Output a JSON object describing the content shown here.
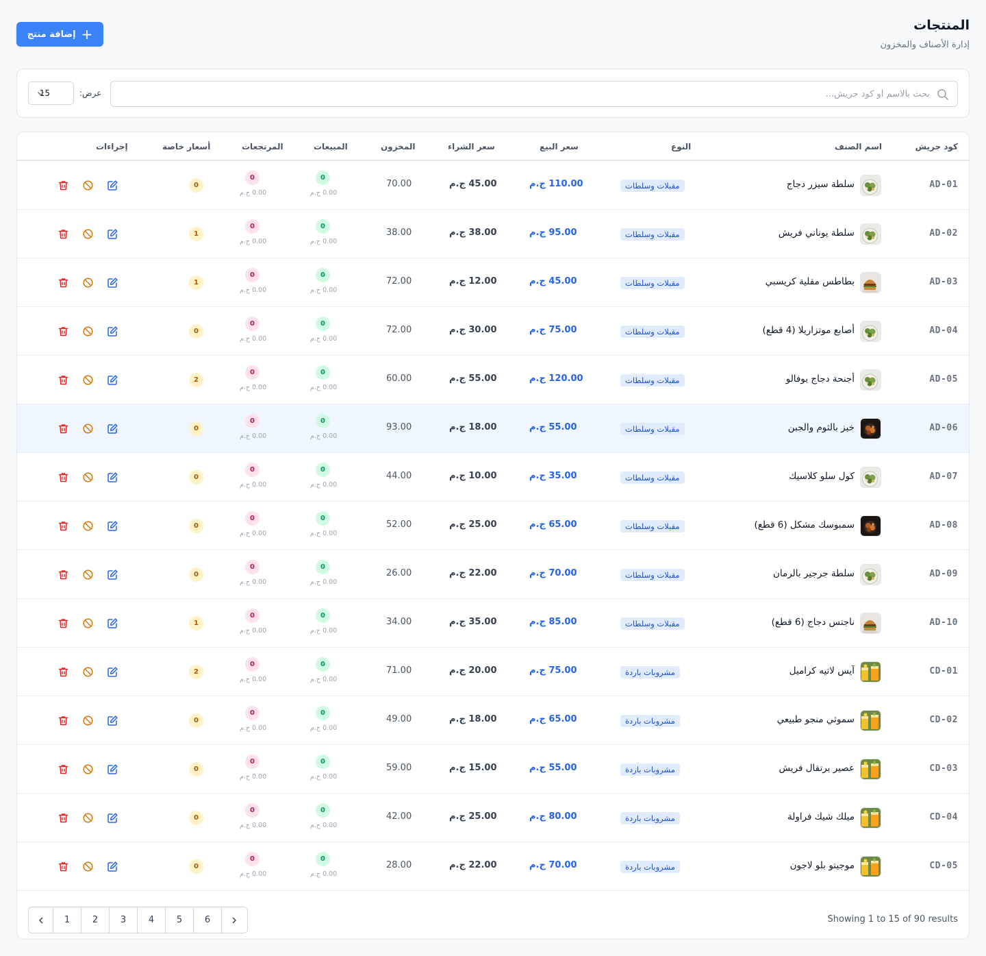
{
  "header": {
    "title": "المنتجات",
    "subtitle": "إدارة الأصناف والمخزون",
    "add_button_label": "إضافة منتج"
  },
  "filters": {
    "search_placeholder": "بحث بالاسم أو كود جريش...",
    "search_value": "",
    "show_label": "عرض:",
    "per_page": "15"
  },
  "table": {
    "headers": {
      "code": "كود جريش",
      "name": "اسم الصنف",
      "category": "النوع",
      "sell_price": "سعر البيع",
      "buy_price": "سعر الشراء",
      "stock": "المخزون",
      "sales": "المبيعات",
      "returns": "المرتجعات",
      "special_prices": "أسعار خاصة",
      "actions": "إجراءات"
    },
    "rows": [
      {
        "code": "AD-01",
        "thumb": "salad",
        "name": "سلطة سيزر دجاج",
        "category": "مقبلات وسلطات",
        "sell": "110.00 ج.م",
        "buy": "45.00 ج.م",
        "stock": "70.00",
        "sales": "0",
        "sales_amount": "0.00 ج.م",
        "returns": "0",
        "returns_amount": "0.00 ج.م",
        "special": "0",
        "highlight": false
      },
      {
        "code": "AD-02",
        "thumb": "salad",
        "name": "سلطة يوناني فريش",
        "category": "مقبلات وسلطات",
        "sell": "95.00 ج.م",
        "buy": "38.00 ج.م",
        "stock": "38.00",
        "sales": "0",
        "sales_amount": "0.00 ج.م",
        "returns": "0",
        "returns_amount": "0.00 ج.م",
        "special": "1",
        "highlight": false
      },
      {
        "code": "AD-03",
        "thumb": "burger",
        "name": "بطاطس مقلية كريسبي",
        "category": "مقبلات وسلطات",
        "sell": "45.00 ج.م",
        "buy": "12.00 ج.م",
        "stock": "72.00",
        "sales": "0",
        "sales_amount": "0.00 ج.م",
        "returns": "0",
        "returns_amount": "0.00 ج.م",
        "special": "1",
        "highlight": false
      },
      {
        "code": "AD-04",
        "thumb": "salad",
        "name": "أصابع موتزاريلا (4 قطع)",
        "category": "مقبلات وسلطات",
        "sell": "75.00 ج.م",
        "buy": "30.00 ج.م",
        "stock": "72.00",
        "sales": "0",
        "sales_amount": "0.00 ج.م",
        "returns": "0",
        "returns_amount": "0.00 ج.م",
        "special": "0",
        "highlight": false
      },
      {
        "code": "AD-05",
        "thumb": "salad",
        "name": "أجنحة دجاج بوفالو",
        "category": "مقبلات وسلطات",
        "sell": "120.00 ج.م",
        "buy": "55.00 ج.م",
        "stock": "60.00",
        "sales": "0",
        "sales_amount": "0.00 ج.م",
        "returns": "0",
        "returns_amount": "0.00 ج.م",
        "special": "2",
        "highlight": false
      },
      {
        "code": "AD-06",
        "thumb": "dark",
        "name": "خبز بالثوم والجبن",
        "category": "مقبلات وسلطات",
        "sell": "55.00 ج.م",
        "buy": "18.00 ج.م",
        "stock": "93.00",
        "sales": "0",
        "sales_amount": "0.00 ج.م",
        "returns": "0",
        "returns_amount": "0.00 ج.م",
        "special": "0",
        "highlight": true
      },
      {
        "code": "AD-07",
        "thumb": "salad",
        "name": "كول سلو كلاسيك",
        "category": "مقبلات وسلطات",
        "sell": "35.00 ج.م",
        "buy": "10.00 ج.م",
        "stock": "44.00",
        "sales": "0",
        "sales_amount": "0.00 ج.م",
        "returns": "0",
        "returns_amount": "0.00 ج.م",
        "special": "0",
        "highlight": false
      },
      {
        "code": "AD-08",
        "thumb": "dark",
        "name": "سمبوسك مشكل (6 قطع)",
        "category": "مقبلات وسلطات",
        "sell": "65.00 ج.م",
        "buy": "25.00 ج.م",
        "stock": "52.00",
        "sales": "0",
        "sales_amount": "0.00 ج.م",
        "returns": "0",
        "returns_amount": "0.00 ج.م",
        "special": "0",
        "highlight": false
      },
      {
        "code": "AD-09",
        "thumb": "salad",
        "name": "سلطة جرجير بالرمان",
        "category": "مقبلات وسلطات",
        "sell": "70.00 ج.م",
        "buy": "22.00 ج.م",
        "stock": "26.00",
        "sales": "0",
        "sales_amount": "0.00 ج.م",
        "returns": "0",
        "returns_amount": "0.00 ج.م",
        "special": "0",
        "highlight": false
      },
      {
        "code": "AD-10",
        "thumb": "burger",
        "name": "ناجتس دجاج (6 قطع)",
        "category": "مقبلات وسلطات",
        "sell": "85.00 ج.م",
        "buy": "35.00 ج.م",
        "stock": "34.00",
        "sales": "0",
        "sales_amount": "0.00 ج.م",
        "returns": "0",
        "returns_amount": "0.00 ج.م",
        "special": "1",
        "highlight": false
      },
      {
        "code": "CD-01",
        "thumb": "drink",
        "name": "آيس لاتيه كراميل",
        "category": "مشروبات باردة",
        "sell": "75.00 ج.م",
        "buy": "20.00 ج.م",
        "stock": "71.00",
        "sales": "0",
        "sales_amount": "0.00 ج.م",
        "returns": "0",
        "returns_amount": "0.00 ج.م",
        "special": "2",
        "highlight": false
      },
      {
        "code": "CD-02",
        "thumb": "drink",
        "name": "سموثي منجو طبيعي",
        "category": "مشروبات باردة",
        "sell": "65.00 ج.م",
        "buy": "18.00 ج.م",
        "stock": "49.00",
        "sales": "0",
        "sales_amount": "0.00 ج.م",
        "returns": "0",
        "returns_amount": "0.00 ج.م",
        "special": "0",
        "highlight": false
      },
      {
        "code": "CD-03",
        "thumb": "drink",
        "name": "عصير برتقال فريش",
        "category": "مشروبات باردة",
        "sell": "55.00 ج.م",
        "buy": "15.00 ج.م",
        "stock": "59.00",
        "sales": "0",
        "sales_amount": "0.00 ج.م",
        "returns": "0",
        "returns_amount": "0.00 ج.م",
        "special": "0",
        "highlight": false
      },
      {
        "code": "CD-04",
        "thumb": "drink",
        "name": "ميلك شيك فراولة",
        "category": "مشروبات باردة",
        "sell": "80.00 ج.م",
        "buy": "25.00 ج.م",
        "stock": "42.00",
        "sales": "0",
        "sales_amount": "0.00 ج.م",
        "returns": "0",
        "returns_amount": "0.00 ج.م",
        "special": "0",
        "highlight": false
      },
      {
        "code": "CD-05",
        "thumb": "drink",
        "name": "موجيتو بلو لاجون",
        "category": "مشروبات باردة",
        "sell": "70.00 ج.م",
        "buy": "22.00 ج.م",
        "stock": "28.00",
        "sales": "0",
        "sales_amount": "0.00 ج.م",
        "returns": "0",
        "returns_amount": "0.00 ج.م",
        "special": "0",
        "highlight": false
      }
    ]
  },
  "pagination": {
    "results_text": "Showing 1 to 15 of 90 results",
    "pages": [
      "1",
      "2",
      "3",
      "4",
      "5",
      "6"
    ]
  },
  "colors": {
    "primary": "#3b82f6",
    "sell_price": "#2563eb",
    "category_bg": "#e0ebfb",
    "sales_green": "#059669",
    "returns_pink": "#be185d",
    "special_amber": "#b45309",
    "action_edit": "#2563eb",
    "action_block": "#d97706",
    "action_delete": "#dc2626",
    "row_highlight": "#eff6ff"
  },
  "icons": {
    "add": "plus-icon",
    "search": "search-icon",
    "per_page": "chevron-down-icon",
    "edit": "edit-icon",
    "block": "block-icon",
    "delete": "trash-icon",
    "prev": "chevron-left-icon",
    "next": "chevron-right-icon"
  }
}
